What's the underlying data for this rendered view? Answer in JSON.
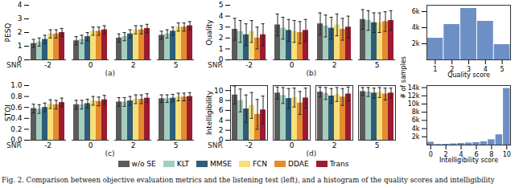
{
  "caption": "Fig. 2. Comparison between objective evaluation metrics and the listening test (left), and a histogram of the quality scores and intelligibility",
  "chart_data": [
    {
      "type": "bar",
      "subtitle": "(a)",
      "x_label": "SNR",
      "y_label": "PESQ",
      "categories": [
        "-2",
        "0",
        "2",
        "5"
      ],
      "ylim": [
        0,
        4
      ],
      "yticks": [
        0,
        1,
        2,
        3,
        4
      ],
      "grid": false,
      "series": [
        {
          "name": "w/o SE",
          "color": "#5b5b5b",
          "values": [
            1.2,
            1.4,
            1.6,
            1.8
          ],
          "errors": [
            0.3,
            0.3,
            0.3,
            0.3
          ]
        },
        {
          "name": "KLT",
          "color": "#a3cdbf",
          "values": [
            1.3,
            1.5,
            1.7,
            1.9
          ],
          "errors": [
            0.3,
            0.3,
            0.3,
            0.3
          ]
        },
        {
          "name": "MMSE",
          "color": "#2e5d78",
          "values": [
            1.5,
            1.7,
            1.9,
            2.1
          ],
          "errors": [
            0.3,
            0.3,
            0.3,
            0.3
          ]
        },
        {
          "name": "FCN",
          "color": "#f6df7a",
          "values": [
            1.9,
            2.1,
            2.2,
            2.4
          ],
          "errors": [
            0.3,
            0.3,
            0.3,
            0.3
          ]
        },
        {
          "name": "DDAE",
          "color": "#e58a2f",
          "values": [
            1.9,
            2.1,
            2.2,
            2.4
          ],
          "errors": [
            0.3,
            0.3,
            0.3,
            0.3
          ]
        },
        {
          "name": "Trans",
          "color": "#9b1c31",
          "values": [
            2.0,
            2.2,
            2.3,
            2.5
          ],
          "errors": [
            0.3,
            0.3,
            0.3,
            0.3
          ]
        }
      ]
    },
    {
      "type": "bar",
      "subtitle": "(b)",
      "x_label": "SNR",
      "y_label": "Quality",
      "categories": [
        "-2",
        "0",
        "2",
        "5"
      ],
      "ylim": [
        0,
        5
      ],
      "yticks": [
        0,
        1,
        2,
        3,
        4,
        5
      ],
      "grid": false,
      "series": [
        {
          "name": "w/o SE",
          "color": "#5b5b5b",
          "values": [
            2.8,
            3.2,
            3.3,
            3.7
          ],
          "errors": [
            1.0,
            1.0,
            1.0,
            0.9
          ]
        },
        {
          "name": "KLT",
          "color": "#a3cdbf",
          "values": [
            2.6,
            2.9,
            3.1,
            3.6
          ],
          "errors": [
            1.0,
            1.0,
            1.0,
            0.9
          ]
        },
        {
          "name": "MMSE",
          "color": "#2e5d78",
          "values": [
            2.3,
            2.7,
            2.9,
            3.4
          ],
          "errors": [
            1.0,
            1.0,
            1.0,
            0.9
          ]
        },
        {
          "name": "FCN",
          "color": "#f6df7a",
          "values": [
            2.6,
            2.6,
            3.2,
            3.4
          ],
          "errors": [
            1.0,
            1.0,
            1.0,
            0.9
          ]
        },
        {
          "name": "DDAE",
          "color": "#e58a2f",
          "values": [
            2.0,
            2.5,
            2.8,
            3.5
          ],
          "errors": [
            1.0,
            1.0,
            1.0,
            0.9
          ]
        },
        {
          "name": "Trans",
          "color": "#9b1c31",
          "values": [
            2.3,
            2.7,
            3.0,
            3.6
          ],
          "errors": [
            1.0,
            1.0,
            1.0,
            0.9
          ]
        }
      ]
    },
    {
      "type": "bar",
      "subtitle": "(c)",
      "x_label": "SNR",
      "y_label": "STOI",
      "categories": [
        "-2",
        "0",
        "2",
        "5"
      ],
      "ylim": [
        0,
        1
      ],
      "yticks": [
        {
          "value": 0,
          "label": "0.0"
        },
        0.2,
        0.4,
        0.6,
        0.8,
        {
          "value": 1,
          "label": "1.0"
        }
      ],
      "grid": false,
      "series": [
        {
          "name": "w/o SE",
          "color": "#5b5b5b",
          "values": [
            0.58,
            0.65,
            0.7,
            0.76
          ],
          "errors": [
            0.08,
            0.08,
            0.08,
            0.07
          ]
        },
        {
          "name": "KLT",
          "color": "#a3cdbf",
          "values": [
            0.57,
            0.65,
            0.7,
            0.76
          ],
          "errors": [
            0.08,
            0.08,
            0.08,
            0.07
          ]
        },
        {
          "name": "MMSE",
          "color": "#2e5d78",
          "values": [
            0.6,
            0.67,
            0.72,
            0.77
          ],
          "errors": [
            0.08,
            0.08,
            0.08,
            0.07
          ]
        },
        {
          "name": "FCN",
          "color": "#f6df7a",
          "values": [
            0.66,
            0.72,
            0.75,
            0.79
          ],
          "errors": [
            0.08,
            0.08,
            0.08,
            0.07
          ]
        },
        {
          "name": "DDAE",
          "color": "#e58a2f",
          "values": [
            0.65,
            0.71,
            0.75,
            0.79
          ],
          "errors": [
            0.08,
            0.08,
            0.08,
            0.07
          ]
        },
        {
          "name": "Trans",
          "color": "#9b1c31",
          "values": [
            0.69,
            0.74,
            0.77,
            0.8
          ],
          "errors": [
            0.08,
            0.08,
            0.08,
            0.07
          ]
        }
      ]
    },
    {
      "type": "bar",
      "subtitle": "(d)",
      "x_label": "SNR",
      "y_label": "Intelligibility",
      "categories": [
        "-2",
        "0",
        "2",
        "5"
      ],
      "ylim": [
        0,
        11
      ],
      "yticks": [
        0,
        2,
        4,
        6,
        8,
        10
      ],
      "grid": false,
      "series": [
        {
          "name": "w/o SE",
          "color": "#5b5b5b",
          "values": [
            9.1,
            9.5,
            9.7,
            9.8
          ],
          "errors": [
            1.8,
            1.2,
            1.0,
            0.8
          ]
        },
        {
          "name": "KLT",
          "color": "#a3cdbf",
          "values": [
            8.0,
            9.0,
            9.4,
            9.7
          ],
          "errors": [
            2.3,
            1.6,
            1.2,
            0.9
          ]
        },
        {
          "name": "MMSE",
          "color": "#2e5d78",
          "values": [
            6.3,
            8.4,
            8.9,
            9.5
          ],
          "errors": [
            2.8,
            2.0,
            1.5,
            1.0
          ]
        },
        {
          "name": "FCN",
          "color": "#f6df7a",
          "values": [
            7.0,
            8.6,
            9.2,
            9.6
          ],
          "errors": [
            2.6,
            1.9,
            1.4,
            1.0
          ]
        },
        {
          "name": "DDAE",
          "color": "#e58a2f",
          "values": [
            5.2,
            7.5,
            8.7,
            9.3
          ],
          "errors": [
            3.0,
            2.3,
            1.7,
            1.2
          ]
        },
        {
          "name": "Trans",
          "color": "#9b1c31",
          "values": [
            6.1,
            8.5,
            9.3,
            9.5
          ],
          "errors": [
            2.8,
            2.0,
            1.4,
            1.0
          ]
        }
      ]
    },
    {
      "type": "histogram",
      "x_label": "Quality score",
      "color": "#6c8fc6",
      "bins": [
        0.5,
        1.5,
        2.5,
        3.5,
        4.5,
        5.5
      ],
      "values": [
        2700,
        4400,
        6400,
        4800,
        1900
      ],
      "xlim": [
        0.5,
        5.5
      ],
      "xticks": [
        1,
        2,
        3,
        4,
        5
      ],
      "ylim": [
        0,
        6800
      ],
      "yticks": [
        {
          "value": 2000,
          "label": "2k"
        },
        {
          "value": 4000,
          "label": "4k"
        },
        {
          "value": 6000,
          "label": "6k"
        }
      ],
      "grid": false
    },
    {
      "type": "histogram",
      "x_label": "Intelligibility score",
      "y_label": "# of samples",
      "color": "#6c8fc6",
      "bins": [
        -0.5,
        0.5,
        1.5,
        2.5,
        3.5,
        4.5,
        5.5,
        6.5,
        7.5,
        8.5,
        9.5,
        10.5
      ],
      "values": [
        700,
        150,
        200,
        300,
        400,
        500,
        600,
        800,
        1300,
        2500,
        13800
      ],
      "xlim": [
        -0.5,
        10.5
      ],
      "xticks": [
        0,
        2,
        4,
        6,
        8,
        10
      ],
      "ylim": [
        0,
        14500
      ],
      "yticks": [
        {
          "value": 2000,
          "label": "2k"
        },
        {
          "value": 4000,
          "label": "4k"
        },
        {
          "value": 6000,
          "label": "6k"
        },
        {
          "value": 8000,
          "label": "8k"
        },
        {
          "value": 10000,
          "label": "10k"
        },
        {
          "value": 12000,
          "label": "12k"
        },
        {
          "value": 14000,
          "label": "14k"
        }
      ],
      "grid": false
    }
  ]
}
